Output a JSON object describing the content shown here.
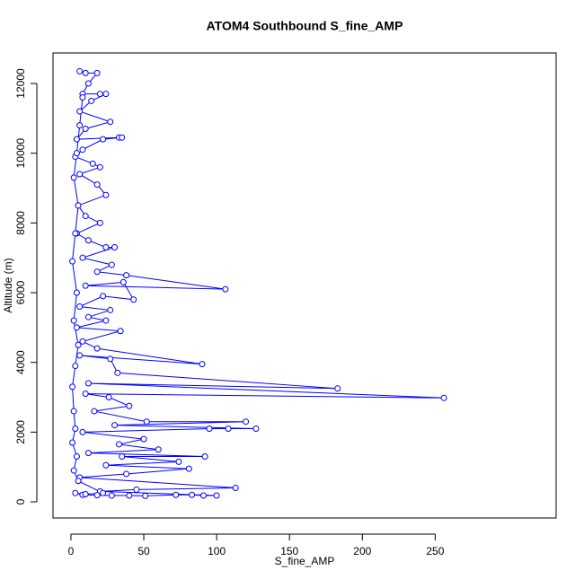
{
  "chart_data": {
    "type": "line",
    "title": "ATOM4 Southbound S_fine_AMP",
    "x_label": "S_fine_AMP",
    "y_label": "Altitude (m)",
    "color": "#0000ff",
    "markers": "open-circle",
    "x": [
      6,
      10,
      18,
      12,
      8,
      20,
      24,
      14,
      6,
      27,
      10,
      4,
      33,
      35,
      22,
      8,
      3,
      15,
      20,
      6,
      18,
      24,
      5,
      10,
      20,
      4,
      12,
      24,
      30,
      8,
      28,
      18,
      38,
      106,
      10,
      36,
      43,
      22,
      6,
      27,
      12,
      24,
      4,
      34,
      8,
      18,
      90,
      6,
      27,
      32,
      183,
      12,
      256,
      10,
      26,
      40,
      16,
      52,
      120,
      30,
      127,
      108,
      95,
      8,
      50,
      33,
      60,
      12,
      92,
      35,
      74,
      24,
      81,
      38,
      6,
      113,
      45,
      20,
      100,
      91,
      83,
      72,
      51,
      40,
      28,
      18,
      8,
      3,
      10,
      22,
      5,
      2,
      4,
      1,
      3,
      2,
      1,
      3,
      5,
      2,
      4,
      1,
      3,
      5,
      2,
      4,
      6,
      8
    ],
    "values": [
      12350,
      12300,
      12300,
      12000,
      11700,
      11700,
      11700,
      11500,
      11200,
      10900,
      10700,
      10400,
      10450,
      10450,
      10400,
      10100,
      9900,
      9700,
      9600,
      9400,
      9100,
      8800,
      8500,
      8200,
      8000,
      7700,
      7500,
      7300,
      7300,
      7000,
      6800,
      6600,
      6500,
      6100,
      6200,
      6300,
      5800,
      5900,
      5600,
      5500,
      5300,
      5200,
      5000,
      4900,
      4600,
      4400,
      3950,
      4200,
      4100,
      3700,
      3250,
      3400,
      2980,
      3100,
      3000,
      2750,
      2600,
      2300,
      2300,
      2200,
      2100,
      2100,
      2100,
      2000,
      1800,
      1650,
      1500,
      1400,
      1300,
      1300,
      1150,
      1050,
      950,
      800,
      700,
      400,
      350,
      300,
      180,
      180,
      200,
      200,
      170,
      180,
      180,
      190,
      200,
      250,
      220,
      250,
      600,
      900,
      1300,
      1700,
      2100,
      2600,
      3300,
      3900,
      4500,
      5200,
      6000,
      6900,
      7700,
      8500,
      9300,
      10000,
      10800,
      11600
    ],
    "xlim": [
      -12.3,
      333
    ],
    "ylim": [
      -463,
      12876
    ],
    "xticks": [
      0,
      50,
      100,
      150,
      200,
      250
    ],
    "yticks": [
      0,
      2000,
      4000,
      6000,
      8000,
      10000,
      12000
    ]
  }
}
